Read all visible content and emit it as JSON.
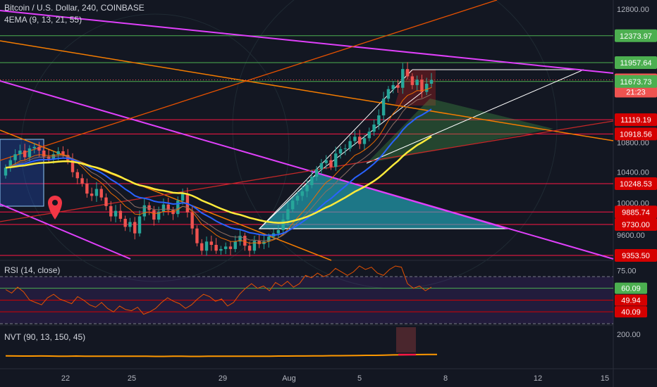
{
  "header": {
    "symbol_title": "Bitcoin / U.S. Dollar, 240, COINBASE",
    "indicator": "4EMA (9, 13, 21, 55)"
  },
  "rsi_panel": {
    "label": "RSI (14, close)"
  },
  "nvt_panel": {
    "label": "NVT (90, 13, 150, 45)"
  },
  "colors": {
    "background": "#131722",
    "up_candle": "#26a69a",
    "down_candle": "#ef5350",
    "support_resistance_green": "#4caf50",
    "support_resistance_red": "#ff1744",
    "trendline_magenta": "#e040fb",
    "trendline_orange": "#ff9800",
    "ema_yellow": "#ffeb3b",
    "ema_blue": "#2962ff",
    "rsi_line": "#e65100",
    "nvt_line": "#ff9800",
    "pattern_teal": "#26c6da"
  },
  "chart_data": [
    {
      "type": "candlestick",
      "title": "Bitcoin / U.S. Dollar, 240, COINBASE",
      "x_ticks": [
        "22",
        "25",
        "29",
        "Aug",
        "5",
        "8",
        "12",
        "15"
      ],
      "y_ticks": [
        "12800.00",
        "10800.00",
        "10400.00",
        "10000.00",
        "9600.00"
      ],
      "y_scale": "log",
      "ylim": [
        9250,
        12900
      ],
      "price_levels": [
        {
          "value": "12373.97",
          "color": "green",
          "line": true
        },
        {
          "value": "11957.64",
          "color": "green",
          "line": true
        },
        {
          "value": "11697.00",
          "color": "red",
          "line": false,
          "current_price": true,
          "countdown": "21:23"
        },
        {
          "value": "11673.73",
          "color": "green",
          "line": true
        },
        {
          "value": "11119.19",
          "color": "red",
          "line": true
        },
        {
          "value": "10918.56",
          "color": "red",
          "line": true
        },
        {
          "value": "10248.53",
          "color": "red",
          "line": true
        },
        {
          "value": "9885.74",
          "color": "red",
          "line": true
        },
        {
          "value": "9730.00",
          "color": "red",
          "line": true
        },
        {
          "value": "9353.50",
          "color": "red",
          "line": true
        }
      ],
      "close_series": [
        10460,
        10560,
        10640,
        10690,
        10600,
        10720,
        10740,
        10690,
        10610,
        10580,
        10640,
        10680,
        10630,
        10560,
        10400,
        10320,
        10250,
        10120,
        10090,
        10180,
        10070,
        9960,
        9830,
        9900,
        9800,
        9700,
        9760,
        9620,
        9830,
        9970,
        9910,
        9790,
        9890,
        9980,
        9910,
        9860,
        10030,
        10120,
        9880,
        9680,
        9500,
        9410,
        9520,
        9480,
        9410,
        9430,
        9460,
        9430,
        9520,
        9590,
        9470,
        9410,
        9530,
        9490,
        9520,
        9580,
        9620,
        9660,
        9790,
        9920,
        10030,
        10090,
        10150,
        10230,
        10340,
        10440,
        10520,
        10560,
        10470,
        10650,
        10710,
        10720,
        10820,
        10880,
        10780,
        10860,
        10950,
        11050,
        11180,
        11420,
        11560,
        11620,
        11580,
        11860,
        11750,
        11620,
        11700,
        11520,
        11640,
        11697
      ]
    },
    {
      "type": "line",
      "title": "RSI (14, close)",
      "y_ticks": [
        "75.00"
      ],
      "levels": [
        "60.09",
        "49.94",
        "40.09"
      ],
      "values": [
        59,
        56,
        61,
        57,
        50,
        48,
        46,
        52,
        55,
        51,
        49,
        47,
        53,
        50,
        46,
        44,
        48,
        43,
        40,
        45,
        42,
        41,
        44,
        38,
        40,
        43,
        48,
        52,
        49,
        47,
        43,
        46,
        51,
        55,
        53,
        49,
        51,
        45,
        48,
        55,
        60,
        64,
        60,
        62,
        58,
        65,
        62,
        66,
        61,
        64,
        71,
        69,
        73,
        70,
        72,
        77,
        74,
        71,
        74,
        79,
        76,
        78,
        73,
        71,
        76,
        79,
        78,
        64,
        60,
        62,
        58,
        61
      ]
    },
    {
      "type": "line",
      "title": "NVT (90, 13, 150, 45)",
      "y_ticks": [
        "200.00"
      ],
      "values": [
        14,
        13,
        12,
        12,
        13,
        12,
        11,
        11,
        12,
        11,
        10,
        10,
        11,
        10,
        10,
        11,
        10,
        9,
        9,
        10,
        10,
        9,
        9,
        10,
        10,
        11,
        11,
        10,
        10,
        11,
        11,
        12,
        12,
        13,
        13,
        14,
        14,
        15,
        15,
        16,
        17,
        18,
        18,
        20,
        22,
        23,
        24,
        25,
        26,
        26
      ]
    }
  ]
}
